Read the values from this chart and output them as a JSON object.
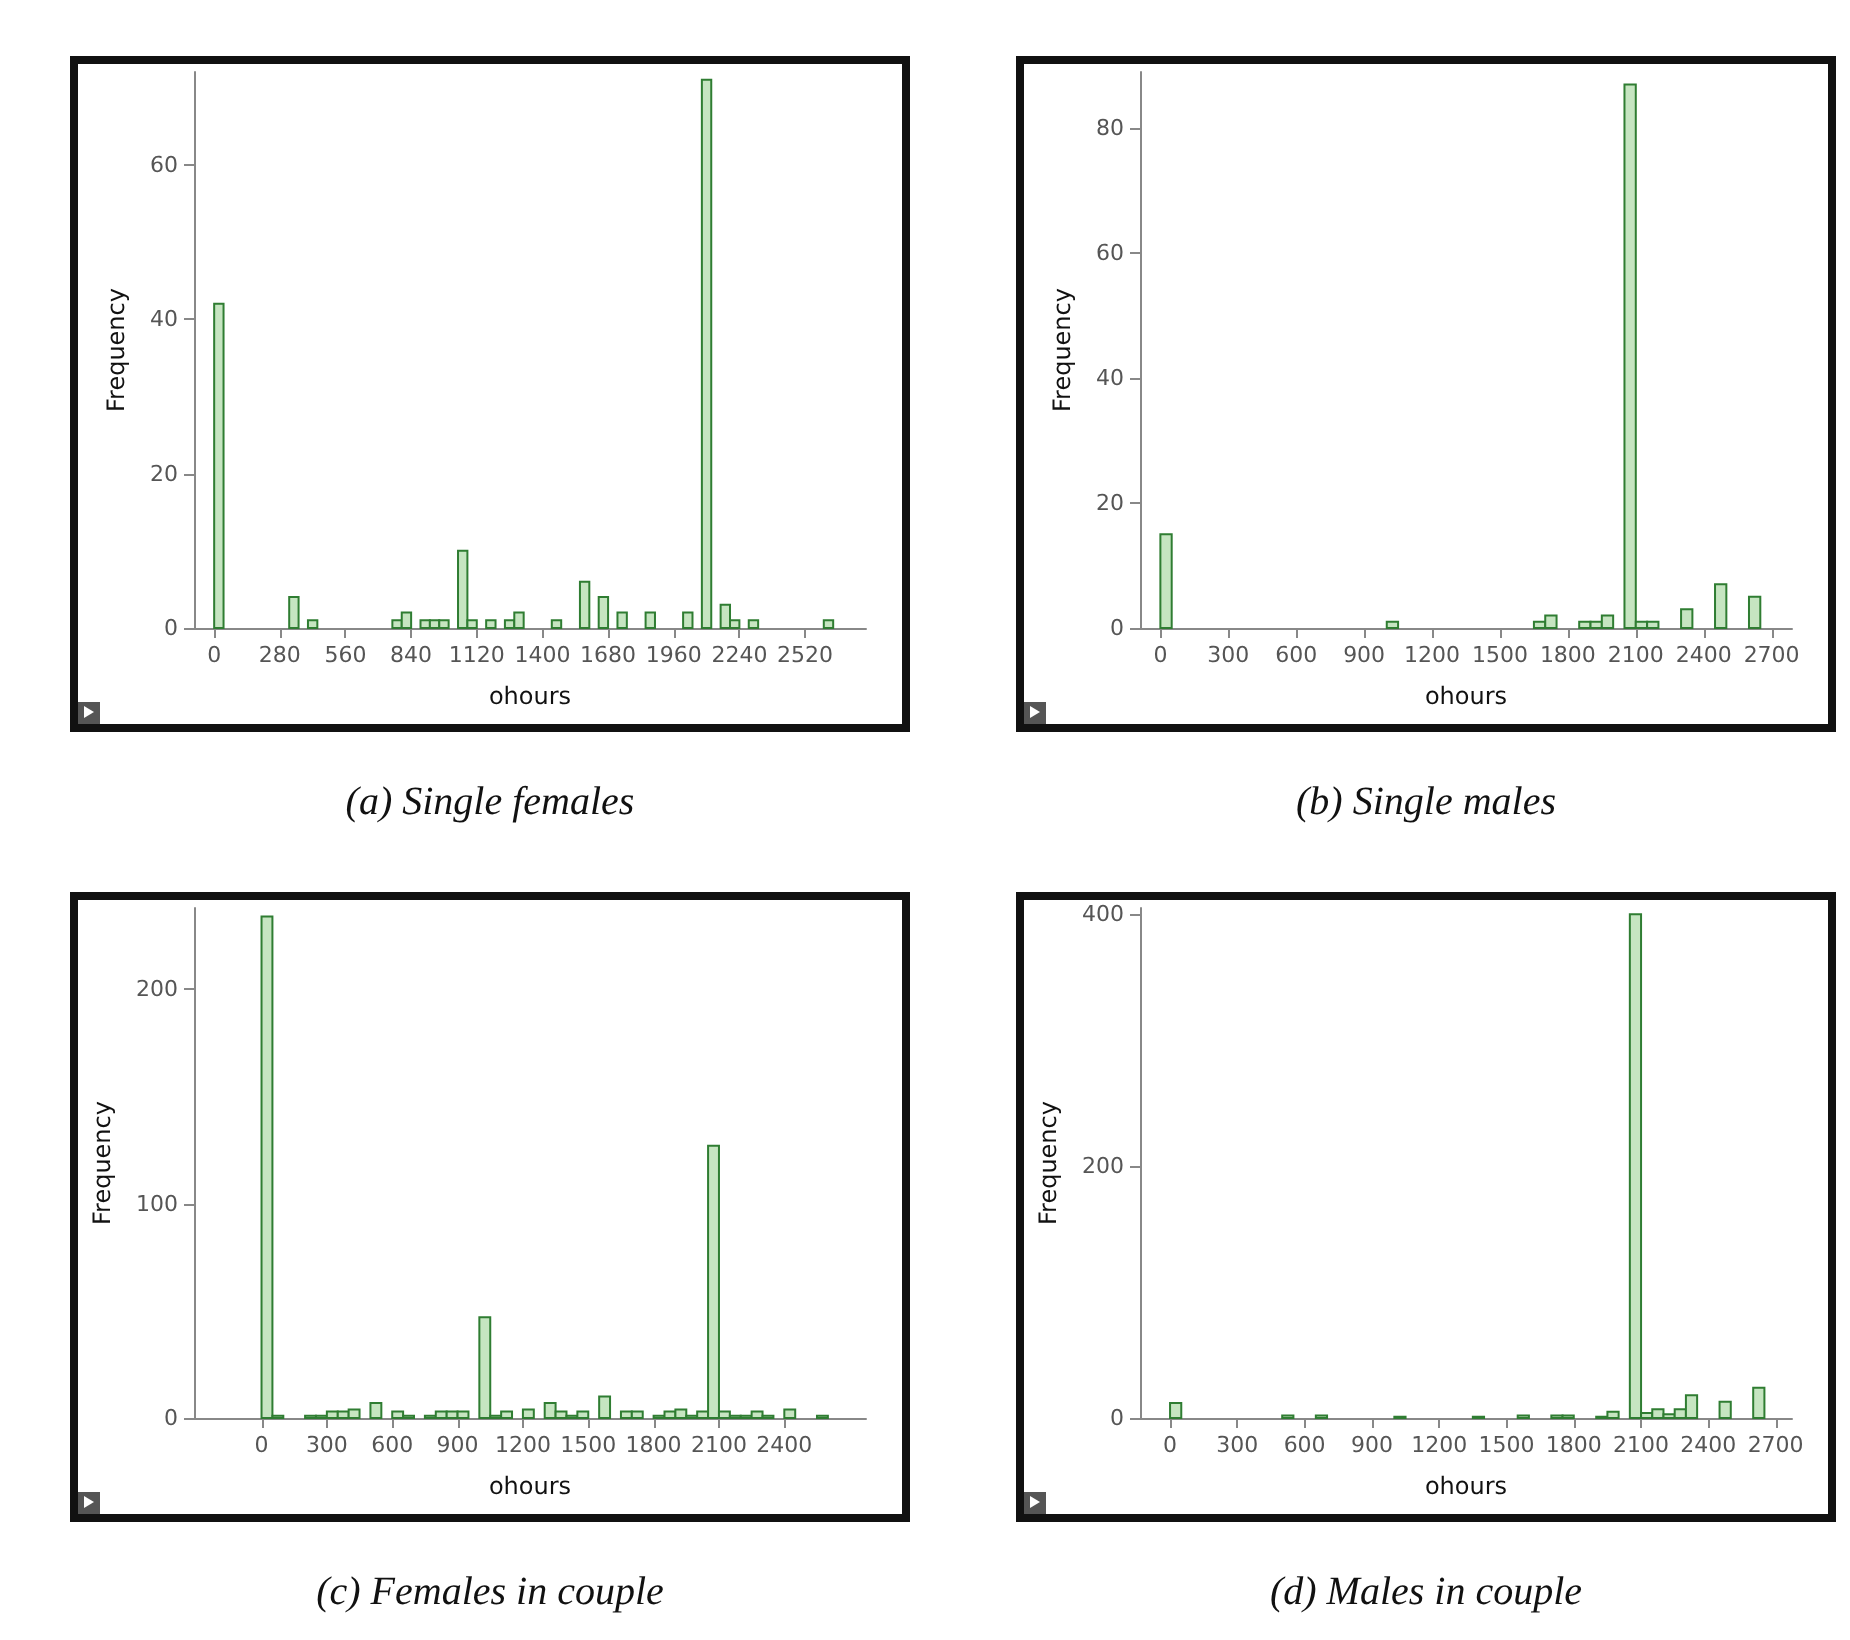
{
  "chart_data": [
    {
      "type": "histogram",
      "title": "(a) Single females",
      "xlabel": "ohours",
      "ylabel": "Frequency",
      "color": "#c6e5c1",
      "bins": [
        0,
        40,
        80,
        120,
        160,
        200,
        240,
        280,
        320,
        360,
        400,
        440,
        480,
        520,
        560,
        600,
        640,
        680,
        720,
        760,
        800,
        840,
        880,
        920,
        960,
        1000,
        1040,
        1080,
        1120,
        1160,
        1200,
        1240,
        1280,
        1320,
        1360,
        1400,
        1440,
        1480,
        1520,
        1560,
        1600,
        1640,
        1680,
        1720,
        1760,
        1800,
        1840,
        1880,
        1920,
        1960,
        2000,
        2040,
        2080,
        2120,
        2160,
        2200,
        2240,
        2280,
        2320,
        2360,
        2400,
        2440,
        2480,
        2520,
        2560,
        2600,
        2640
      ],
      "values": [
        42,
        0,
        0,
        0,
        0,
        0,
        0,
        0,
        4,
        0,
        1,
        0,
        0,
        0,
        0,
        0,
        0,
        0,
        0,
        1,
        2,
        0,
        1,
        1,
        1,
        0,
        10,
        1,
        0,
        1,
        0,
        1,
        2,
        0,
        0,
        0,
        1,
        0,
        0,
        6,
        0,
        4,
        0,
        2,
        0,
        0,
        2,
        0,
        0,
        0,
        2,
        0,
        71,
        0,
        3,
        1,
        0,
        1,
        0,
        0,
        0,
        0,
        0,
        0,
        0,
        1
      ],
      "xlim": [
        -86,
        2780
      ],
      "xticks": [
        0,
        280,
        560,
        840,
        1120,
        1400,
        1680,
        1960,
        2240,
        2520
      ],
      "ylim": [
        0,
        72
      ],
      "yticks": [
        0,
        20,
        40,
        60
      ]
    },
    {
      "type": "histogram",
      "title": "(b) Single males",
      "xlabel": "ohours",
      "ylabel": "Frequency",
      "color": "#c6e5c1",
      "bins": [
        0,
        50,
        100,
        150,
        200,
        250,
        300,
        350,
        400,
        450,
        500,
        550,
        600,
        650,
        700,
        750,
        800,
        850,
        900,
        950,
        1000,
        1050,
        1100,
        1150,
        1200,
        1250,
        1300,
        1350,
        1400,
        1450,
        1500,
        1550,
        1600,
        1650,
        1700,
        1750,
        1800,
        1850,
        1900,
        1950,
        2000,
        2050,
        2100,
        2150,
        2200,
        2250,
        2300,
        2350,
        2400,
        2450,
        2500,
        2550,
        2600,
        2650
      ],
      "values": [
        15,
        0,
        0,
        0,
        0,
        0,
        0,
        0,
        0,
        0,
        0,
        0,
        0,
        0,
        0,
        0,
        0,
        0,
        0,
        0,
        1,
        0,
        0,
        0,
        0,
        0,
        0,
        0,
        0,
        0,
        0,
        0,
        0,
        1,
        2,
        0,
        0,
        1,
        1,
        2,
        0,
        87,
        1,
        1,
        0,
        0,
        3,
        0,
        0,
        7,
        0,
        0,
        5
      ],
      "xlim": [
        -90,
        2790
      ],
      "xticks": [
        0,
        300,
        600,
        900,
        1200,
        1500,
        1800,
        2100,
        2400,
        2700
      ],
      "ylim": [
        0,
        89
      ],
      "yticks": [
        0,
        20,
        40,
        60,
        80
      ]
    },
    {
      "type": "histogram",
      "title": "(c) Females in couple",
      "xlabel": "ohours",
      "ylabel": "Frequency",
      "color": "#c6e5c1",
      "bins": [
        0,
        50,
        100,
        150,
        200,
        250,
        300,
        350,
        400,
        450,
        500,
        550,
        600,
        650,
        700,
        750,
        800,
        850,
        900,
        950,
        1000,
        1050,
        1100,
        1150,
        1200,
        1250,
        1300,
        1350,
        1400,
        1450,
        1500,
        1550,
        1600,
        1650,
        1700,
        1750,
        1800,
        1850,
        1900,
        1950,
        2000,
        2050,
        2100,
        2150,
        2200,
        2250,
        2300,
        2350,
        2400,
        2450,
        2500,
        2550,
        2600
      ],
      "values": [
        234,
        1,
        0,
        0,
        1,
        1,
        3,
        3,
        4,
        0,
        7,
        0,
        3,
        1,
        0,
        1,
        3,
        3,
        3,
        0,
        47,
        1,
        3,
        0,
        4,
        0,
        7,
        3,
        1,
        3,
        0,
        10,
        0,
        3,
        3,
        0,
        1,
        3,
        4,
        1,
        3,
        127,
        3,
        1,
        1,
        3,
        1,
        0,
        4,
        0,
        0,
        1
      ],
      "xlim": [
        -310,
        2775
      ],
      "xticks": [
        0,
        300,
        600,
        900,
        1200,
        1500,
        1800,
        2100,
        2400
      ],
      "ylim": [
        0,
        238
      ],
      "yticks": [
        0,
        100,
        200
      ]
    },
    {
      "type": "histogram",
      "title": "(d) Males in couple",
      "xlabel": "ohours",
      "ylabel": "Frequency",
      "color": "#c6e5c1",
      "bins": [
        0,
        50,
        100,
        150,
        200,
        250,
        300,
        350,
        400,
        450,
        500,
        550,
        600,
        650,
        700,
        750,
        800,
        850,
        900,
        950,
        1000,
        1050,
        1100,
        1150,
        1200,
        1250,
        1300,
        1350,
        1400,
        1450,
        1500,
        1550,
        1600,
        1650,
        1700,
        1750,
        1800,
        1850,
        1900,
        1950,
        2000,
        2050,
        2100,
        2150,
        2200,
        2250,
        2300,
        2350,
        2400,
        2450,
        2500,
        2550,
        2600,
        2650
      ],
      "values": [
        12,
        0,
        0,
        0,
        0,
        0,
        0,
        0,
        0,
        0,
        2,
        0,
        0,
        2,
        0,
        0,
        0,
        0,
        0,
        0,
        1,
        0,
        0,
        0,
        0,
        0,
        0,
        1,
        0,
        0,
        0,
        2,
        0,
        0,
        2,
        2,
        0,
        0,
        1,
        5,
        0,
        400,
        4,
        7,
        3,
        7,
        18,
        0,
        0,
        13,
        0,
        0,
        24
      ],
      "xlim": [
        -134,
        2773
      ],
      "xticks": [
        0,
        300,
        600,
        900,
        1200,
        1500,
        1800,
        2100,
        2400,
        2700
      ],
      "ylim": [
        0,
        405
      ],
      "yticks": [
        0,
        200,
        400
      ]
    }
  ]
}
